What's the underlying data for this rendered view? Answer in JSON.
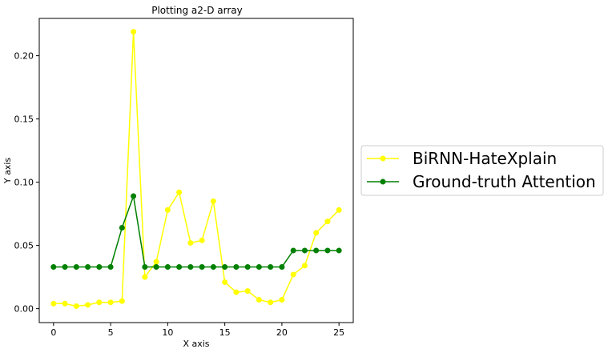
{
  "chart_data": {
    "type": "line",
    "title": "Plotting a2-D array",
    "xlabel": "X axis",
    "ylabel": "Y axis",
    "xlim": [
      -1.25,
      26.25
    ],
    "ylim": [
      -0.011,
      0.2295
    ],
    "xticks": [
      0,
      5,
      10,
      15,
      20,
      25
    ],
    "xtick_labels": [
      "0",
      "5",
      "10",
      "15",
      "20",
      "25"
    ],
    "yticks": [
      0.0,
      0.05,
      0.1,
      0.15,
      0.2
    ],
    "ytick_labels": [
      "0.00",
      "0.05",
      "0.10",
      "0.15",
      "0.20"
    ],
    "grid": false,
    "legend_position": "outside-right",
    "x": [
      0,
      1,
      2,
      3,
      4,
      5,
      6,
      7,
      8,
      9,
      10,
      11,
      12,
      13,
      14,
      15,
      16,
      17,
      18,
      19,
      20,
      21,
      22,
      23,
      24,
      25
    ],
    "series": [
      {
        "name": "BiRNN-HateXplain",
        "color": "#ffff00",
        "marker": "circle",
        "values": [
          0.004,
          0.004,
          0.002,
          0.003,
          0.005,
          0.005,
          0.006,
          0.219,
          0.025,
          0.037,
          0.078,
          0.092,
          0.052,
          0.054,
          0.085,
          0.021,
          0.013,
          0.014,
          0.007,
          0.005,
          0.007,
          0.027,
          0.034,
          0.06,
          0.069,
          0.078
        ]
      },
      {
        "name": "Ground-truth Attention",
        "color": "#008000",
        "marker": "circle",
        "values": [
          0.033,
          0.033,
          0.033,
          0.033,
          0.033,
          0.033,
          0.064,
          0.089,
          0.033,
          0.033,
          0.033,
          0.033,
          0.033,
          0.033,
          0.033,
          0.033,
          0.033,
          0.033,
          0.033,
          0.033,
          0.033,
          0.046,
          0.046,
          0.046,
          0.046,
          0.046
        ]
      }
    ]
  }
}
